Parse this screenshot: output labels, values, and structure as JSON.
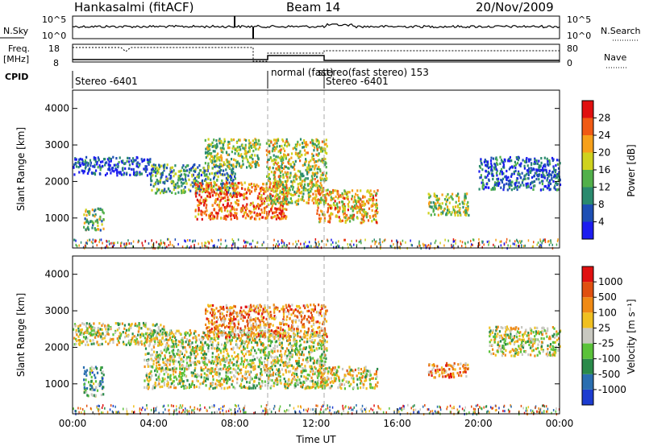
{
  "header": {
    "title": "Hankasalmi (fitACF)",
    "beam": "Beam 14",
    "date": "20/Nov/2009"
  },
  "status_panels": {
    "nsky_label": "N.Sky",
    "nsky_tick_top": "10^5",
    "nsky_tick_bottom": "10^0",
    "nsearch_label": "N.Search",
    "nsearch_tick_top": "10^5",
    "nsearch_tick_bottom": "10^0",
    "freq_label": "Freq.",
    "freq_unit": "[MHz]",
    "freq_tick_top": "18",
    "freq_tick_bottom": "8",
    "nave_label": "Nave",
    "nave_tick_top": "80",
    "nave_tick_bottom": "0",
    "cpid_label": "CPID",
    "cpid_segments": [
      {
        "label": "Stereo  -6401"
      },
      {
        "label": "normal (fast)"
      },
      {
        "label": "stereo(fast stereo)  153"
      },
      {
        "label": "Stereo  -6401"
      }
    ]
  },
  "chart_data": [
    {
      "type": "heatmap",
      "name": "power-panel",
      "ylabel": "Slant Range [km]",
      "yticks": [
        "1000",
        "2000",
        "3000",
        "4000"
      ],
      "ylim": [
        180,
        4500
      ],
      "xlim": [
        0,
        24
      ],
      "colorbar_label": "Power [dB]",
      "colorbar_ticks": [
        "4",
        "8",
        "12",
        "16",
        "20",
        "24",
        "28"
      ],
      "colorbar_colors": [
        "#1c1cf0",
        "#1e4fb4",
        "#2a8a6e",
        "#52b04a",
        "#cfd21e",
        "#f6a01a",
        "#f05a14",
        "#e01010"
      ],
      "scatter_regions": [
        {
          "t0": 0.0,
          "t1": 3.8,
          "r0": 2200,
          "r1": 2700,
          "level": 0.15
        },
        {
          "t0": 3.8,
          "t1": 8.0,
          "r0": 1700,
          "r1": 2500,
          "level": 0.35
        },
        {
          "t0": 6.5,
          "t1": 9.2,
          "r0": 2400,
          "r1": 3200,
          "level": 0.5
        },
        {
          "t0": 6.0,
          "t1": 10.5,
          "r0": 1000,
          "r1": 2000,
          "level": 0.8
        },
        {
          "t0": 9.5,
          "t1": 12.5,
          "r0": 1400,
          "r1": 3200,
          "level": 0.55
        },
        {
          "t0": 12.0,
          "t1": 15.0,
          "r0": 900,
          "r1": 1800,
          "level": 0.65
        },
        {
          "t0": 0.5,
          "t1": 1.5,
          "r0": 700,
          "r1": 1300,
          "level": 0.45
        },
        {
          "t0": 17.5,
          "t1": 19.5,
          "r0": 1100,
          "r1": 1700,
          "level": 0.5
        },
        {
          "t0": 20.0,
          "t1": 24.0,
          "r0": 1800,
          "r1": 2700,
          "level": 0.2
        }
      ]
    },
    {
      "type": "heatmap",
      "name": "velocity-panel",
      "ylabel": "Slant Range [km]",
      "yticks": [
        "1000",
        "2000",
        "3000",
        "4000"
      ],
      "ylim": [
        180,
        4500
      ],
      "xlim": [
        0,
        24
      ],
      "xlabel": "Time UT",
      "xticks": [
        "00:00",
        "04:00",
        "08:00",
        "12:00",
        "16:00",
        "20:00",
        "00:00"
      ],
      "colorbar_label": "Velocity [m s⁻¹]",
      "colorbar_ticks": [
        "1000",
        "500",
        "100",
        "25",
        "-25",
        "-100",
        "-500",
        "-1000"
      ],
      "colorbar_colors": [
        "#1c3cd0",
        "#2a6eb0",
        "#2a8a4a",
        "#5ac23a",
        "#c8c8c0",
        "#f0c020",
        "#f08a14",
        "#e05010",
        "#e01010"
      ],
      "scatter_regions": [
        {
          "t0": 0.0,
          "t1": 4.5,
          "r0": 2100,
          "r1": 2700,
          "level": 0.5
        },
        {
          "t0": 3.5,
          "t1": 12.5,
          "r0": 900,
          "r1": 2500,
          "level": 0.5
        },
        {
          "t0": 6.5,
          "t1": 12.5,
          "r0": 2300,
          "r1": 3200,
          "level": 0.7
        },
        {
          "t0": 0.5,
          "t1": 1.5,
          "r0": 700,
          "r1": 1500,
          "level": 0.35
        },
        {
          "t0": 12.0,
          "t1": 15.0,
          "r0": 900,
          "r1": 1500,
          "level": 0.55
        },
        {
          "t0": 17.5,
          "t1": 19.5,
          "r0": 1200,
          "r1": 1600,
          "level": 0.7
        },
        {
          "t0": 20.5,
          "t1": 24.0,
          "r0": 1800,
          "r1": 2600,
          "level": 0.5
        }
      ]
    }
  ]
}
